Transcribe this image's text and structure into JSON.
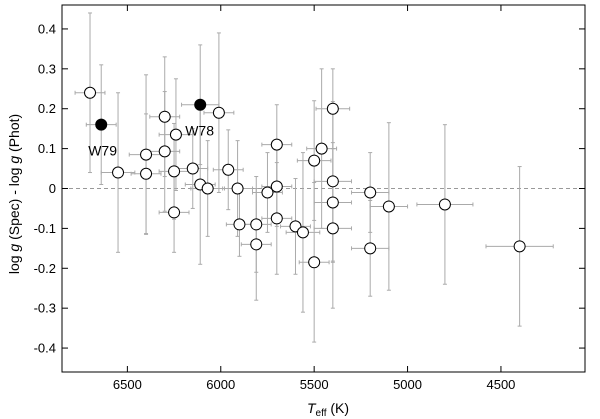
{
  "chart_data": {
    "type": "scatter",
    "title": "",
    "xlabel": {
      "italic": "T",
      "sub": "eff",
      "rest": " (K)"
    },
    "ylabel": {
      "p1": "log ",
      "g1": "g",
      "p2": " (Spec) - log ",
      "g2": "g",
      "p3": " (Phot)"
    },
    "xlim": [
      6850,
      4050
    ],
    "ylim": [
      -0.46,
      0.46
    ],
    "xaxis_reversed": true,
    "xticks": [
      6500,
      6000,
      5500,
      5000,
      4500
    ],
    "xtick_labels": [
      "6500",
      "6000",
      "5500",
      "5000",
      "4500"
    ],
    "yticks": [
      0.4,
      0.3,
      0.2,
      0.1,
      0,
      -0.1,
      -0.2,
      -0.3,
      -0.4
    ],
    "ytick_labels": [
      "0.4",
      "0.3",
      "0.2",
      "0.1",
      "0",
      "-0.1",
      "-0.2",
      "-0.3",
      "-0.4"
    ],
    "reference_line": {
      "y": 0,
      "style": "dashed",
      "color": "#999999"
    },
    "grid": false,
    "colors": {
      "open_marker": "#000000",
      "errorbar": "#aaaaaa",
      "filled_marker": "#000000"
    },
    "series": [
      {
        "marker": "open-circle",
        "points": [
          {
            "x": 6700,
            "y": 0.24,
            "xerr": 80,
            "yerr": 0.2
          },
          {
            "x": 6550,
            "y": 0.04,
            "xerr": 90,
            "yerr": 0.2
          },
          {
            "x": 6400,
            "y": 0.085,
            "xerr": 90,
            "yerr": 0.2
          },
          {
            "x": 6400,
            "y": 0.037,
            "xerr": 80,
            "yerr": 0.15
          },
          {
            "x": 6300,
            "y": 0.18,
            "xerr": 80,
            "yerr": 0.15
          },
          {
            "x": 6300,
            "y": 0.093,
            "xerr": 80,
            "yerr": 0.15
          },
          {
            "x": 6250,
            "y": 0.043,
            "xerr": 80,
            "yerr": 0.12
          },
          {
            "x": 6240,
            "y": 0.135,
            "xerr": 90,
            "yerr": 0.14
          },
          {
            "x": 6250,
            "y": -0.06,
            "xerr": 80,
            "yerr": 0.1
          },
          {
            "x": 6150,
            "y": 0.05,
            "xerr": 80,
            "yerr": 0.1
          },
          {
            "x": 6110,
            "y": 0.01,
            "xerr": 80,
            "yerr": 0.2
          },
          {
            "x": 6070,
            "y": 0.0,
            "xerr": 90,
            "yerr": 0.12
          },
          {
            "x": 6010,
            "y": 0.19,
            "xerr": 80,
            "yerr": 0.2
          },
          {
            "x": 5960,
            "y": 0.047,
            "xerr": 80,
            "yerr": 0.1
          },
          {
            "x": 5910,
            "y": 0.0,
            "xerr": 80,
            "yerr": 0.12
          },
          {
            "x": 5900,
            "y": -0.09,
            "xerr": 70,
            "yerr": 0.08
          },
          {
            "x": 5810,
            "y": -0.09,
            "xerr": 80,
            "yerr": 0.12
          },
          {
            "x": 5810,
            "y": -0.14,
            "xerr": 80,
            "yerr": 0.14
          },
          {
            "x": 5750,
            "y": -0.01,
            "xerr": 80,
            "yerr": 0.1
          },
          {
            "x": 5700,
            "y": 0.11,
            "xerr": 80,
            "yerr": 0.1
          },
          {
            "x": 5700,
            "y": 0.005,
            "xerr": 80,
            "yerr": 0.1
          },
          {
            "x": 5700,
            "y": -0.075,
            "xerr": 80,
            "yerr": 0.14
          },
          {
            "x": 5600,
            "y": -0.095,
            "xerr": 80,
            "yerr": 0.12
          },
          {
            "x": 5560,
            "y": -0.11,
            "xerr": 90,
            "yerr": 0.2
          },
          {
            "x": 5500,
            "y": 0.07,
            "xerr": 90,
            "yerr": 0.15
          },
          {
            "x": 5460,
            "y": 0.1,
            "xerr": 80,
            "yerr": 0.2
          },
          {
            "x": 5500,
            "y": -0.185,
            "xerr": 80,
            "yerr": 0.2
          },
          {
            "x": 5400,
            "y": 0.2,
            "xerr": 90,
            "yerr": 0.1
          },
          {
            "x": 5400,
            "y": 0.018,
            "xerr": 100,
            "yerr": 0.2
          },
          {
            "x": 5400,
            "y": -0.035,
            "xerr": 100,
            "yerr": 0.15
          },
          {
            "x": 5400,
            "y": -0.1,
            "xerr": 100,
            "yerr": 0.2
          },
          {
            "x": 5200,
            "y": -0.01,
            "xerr": 100,
            "yerr": 0.1
          },
          {
            "x": 5200,
            "y": -0.15,
            "xerr": 100,
            "yerr": 0.12
          },
          {
            "x": 5100,
            "y": -0.045,
            "xerr": 100,
            "yerr": 0.21
          },
          {
            "x": 4800,
            "y": -0.04,
            "xerr": 150,
            "yerr": 0.2
          },
          {
            "x": 4400,
            "y": -0.145,
            "xerr": 180,
            "yerr": 0.2
          }
        ]
      },
      {
        "marker": "filled-circle",
        "points": [
          {
            "x": 6640,
            "y": 0.16,
            "label": "W79",
            "xerr": 80,
            "yerr": 0.15
          },
          {
            "x": 6110,
            "y": 0.21,
            "label": "W78",
            "xerr": 100,
            "yerr": 0.15
          }
        ]
      }
    ]
  }
}
